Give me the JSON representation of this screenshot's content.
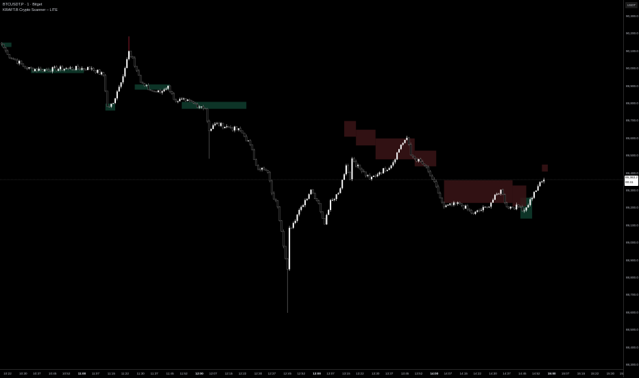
{
  "legend": {
    "symbol_line": "BTCUSDT.P · 1 · Bitget",
    "indicator_line": "KRAFT.B Crypto Scanner – LITE"
  },
  "price_axis": {
    "unit": "USDT",
    "labels": [
      "90,300.0",
      "90,200.0",
      "90,100.0",
      "90,000.0",
      "89,900.0",
      "89,800.0",
      "89,700.0",
      "89,600.0",
      "89,500.0",
      "89,400.0",
      "89,300.0",
      "89,200.0",
      "89,100.0",
      "89,000.0",
      "88,900.0",
      "88,800.0",
      "88,700.0",
      "88,600.0",
      "88,500.0",
      "88,400.0",
      "88,300.0"
    ],
    "current_price": "89,363.2",
    "countdown": "00:41"
  },
  "time_axis": {
    "labels": [
      "10:22",
      "10:30",
      "10:37",
      "10:45",
      "10:52",
      "11:00",
      "11:07",
      "11:15",
      "11:22",
      "11:30",
      "11:37",
      "11:45",
      "11:52",
      "12:00",
      "12:07",
      "12:15",
      "12:22",
      "12:30",
      "12:37",
      "12:45",
      "12:52",
      "13:00",
      "13:07",
      "13:15",
      "13:22",
      "13:30",
      "13:37",
      "13:45",
      "13:52",
      "14:00",
      "14:07",
      "14:15",
      "14:22",
      "14:30",
      "14:37",
      "14:45",
      "14:52",
      "15:00",
      "15:07",
      "15:15",
      "15:22",
      "15:30",
      "15:"
    ],
    "bold_labels": [
      "11:00",
      "12:00",
      "13:00",
      "14:00",
      "15:00"
    ]
  },
  "colors": {
    "background": "#000000",
    "bull_candle": "#ffffff",
    "bear_candle": "#6b6b6b",
    "demand_zone": "#0f3d2e",
    "supply_zone": "#3a1416",
    "spike_red": "#8b1a2a"
  },
  "chart_data": {
    "type": "candlestick",
    "interval": "1 minute",
    "ylim": [
      88300,
      90300
    ],
    "grid": false,
    "close_path": [
      [
        "10:19",
        90141
      ],
      [
        "10:22",
        90082
      ],
      [
        "10:32",
        90002
      ],
      [
        "10:39",
        89994
      ],
      [
        "10:53",
        90002
      ],
      [
        "11:05",
        90002
      ],
      [
        "11:11",
        89962
      ],
      [
        "11:13",
        89783
      ],
      [
        "11:16",
        89803
      ],
      [
        "11:20",
        89922
      ],
      [
        "11:24",
        90101
      ],
      [
        "11:26",
        90061
      ],
      [
        "11:30",
        89922
      ],
      [
        "11:32",
        89902
      ],
      [
        "11:35",
        89875
      ],
      [
        "11:40",
        89863
      ],
      [
        "11:44",
        89902
      ],
      [
        "11:47",
        89823
      ],
      [
        "11:53",
        89815
      ],
      [
        "12:01",
        89783
      ],
      [
        "12:03",
        89771
      ],
      [
        "12:05",
        89644
      ],
      [
        "12:08",
        89684
      ],
      [
        "12:15",
        89664
      ],
      [
        "12:21",
        89644
      ],
      [
        "12:26",
        89564
      ],
      [
        "12:29",
        89445
      ],
      [
        "12:35",
        89405
      ],
      [
        "12:37",
        89286
      ],
      [
        "12:40",
        89207
      ],
      [
        "12:42",
        89067
      ],
      [
        "12:45",
        88849
      ],
      [
        "12:46",
        89087
      ],
      [
        "12:49",
        89127
      ],
      [
        "12:52",
        89207
      ],
      [
        "12:57",
        89306
      ],
      [
        "13:01",
        89226
      ],
      [
        "13:04",
        89107
      ],
      [
        "13:07",
        89246
      ],
      [
        "13:11",
        89286
      ],
      [
        "13:15",
        89445
      ],
      [
        "13:17",
        89366
      ],
      [
        "13:18",
        89485
      ],
      [
        "13:22",
        89425
      ],
      [
        "13:27",
        89366
      ],
      [
        "13:32",
        89405
      ],
      [
        "13:38",
        89445
      ],
      [
        "13:43",
        89564
      ],
      [
        "13:46",
        89604
      ],
      [
        "13:48",
        89505
      ],
      [
        "13:55",
        89445
      ],
      [
        "13:59",
        89366
      ],
      [
        "14:02",
        89286
      ],
      [
        "14:05",
        89207
      ],
      [
        "14:13",
        89226
      ],
      [
        "14:20",
        89167
      ],
      [
        "14:27",
        89207
      ],
      [
        "14:34",
        89306
      ],
      [
        "14:37",
        89207
      ],
      [
        "14:44",
        89207
      ],
      [
        "14:46",
        89187
      ],
      [
        "14:53",
        89326
      ],
      [
        "14:56",
        89363.2
      ]
    ],
    "zones": [
      {
        "kind": "demand",
        "from": "10:19",
        "to": "10:24",
        "top": 90150,
        "bottom": 90125
      },
      {
        "kind": "demand",
        "from": "10:34",
        "to": "11:01",
        "top": 90000,
        "bottom": 89975
      },
      {
        "kind": "demand",
        "from": "11:12",
        "to": "11:17",
        "top": 89800,
        "bottom": 89760
      },
      {
        "kind": "demand",
        "from": "11:27",
        "to": "11:45",
        "top": 89910,
        "bottom": 89880
      },
      {
        "kind": "demand",
        "from": "11:51",
        "to": "12:24",
        "top": 89810,
        "bottom": 89770
      },
      {
        "kind": "demand",
        "from": "14:44",
        "to": "14:50",
        "top": 89260,
        "bottom": 89140
      },
      {
        "kind": "supply",
        "from": "13:14",
        "to": "13:20",
        "top": 89700,
        "bottom": 89610
      },
      {
        "kind": "supply",
        "from": "13:20",
        "to": "13:30",
        "top": 89650,
        "bottom": 89560
      },
      {
        "kind": "supply",
        "from": "13:30",
        "to": "13:50",
        "top": 89600,
        "bottom": 89480
      },
      {
        "kind": "supply",
        "from": "13:50",
        "to": "14:01",
        "top": 89530,
        "bottom": 89440
      },
      {
        "kind": "supply",
        "from": "14:05",
        "to": "14:40",
        "top": 89360,
        "bottom": 89230
      },
      {
        "kind": "supply",
        "from": "14:40",
        "to": "14:47",
        "top": 89330,
        "bottom": 89210
      },
      {
        "kind": "supply",
        "from": "14:55",
        "to": "14:58",
        "top": 89450,
        "bottom": 89410
      }
    ]
  }
}
